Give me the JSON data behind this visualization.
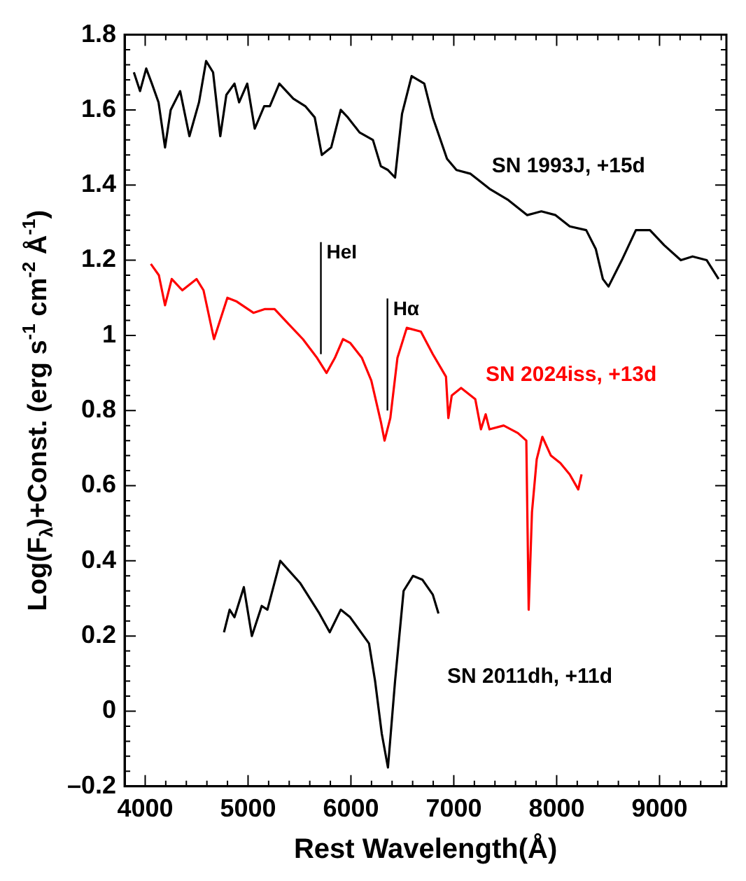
{
  "chart_data": {
    "type": "line",
    "xlabel": "Rest Wavelength(Å)",
    "ylabel": "Log(F$_{λ}$)+Const. (erg s$^{-1}$ cm$^{-2}$ Å$^{-1}$)",
    "xlim": [
      3800,
      9650
    ],
    "ylim": [
      -0.2,
      1.8
    ],
    "xticks": [
      {
        "value": 3800,
        "label": null
      },
      4000,
      {
        "value": 4200,
        "label": null
      },
      {
        "value": 4400,
        "label": null
      },
      {
        "value": 4600,
        "label": null
      },
      {
        "value": 4800,
        "label": null
      },
      5000,
      {
        "value": 5200,
        "label": null
      },
      {
        "value": 5400,
        "label": null
      },
      {
        "value": 5600,
        "label": null
      },
      {
        "value": 5800,
        "label": null
      },
      6000,
      {
        "value": 6200,
        "label": null
      },
      {
        "value": 6400,
        "label": null
      },
      {
        "value": 6600,
        "label": null
      },
      {
        "value": 6800,
        "label": null
      },
      7000,
      {
        "value": 7200,
        "label": null
      },
      {
        "value": 7400,
        "label": null
      },
      {
        "value": 7600,
        "label": null
      },
      {
        "value": 7800,
        "label": null
      },
      8000,
      {
        "value": 8200,
        "label": null
      },
      {
        "value": 8400,
        "label": null
      },
      {
        "value": 8600,
        "label": null
      },
      {
        "value": 8800,
        "label": null
      },
      9000,
      {
        "value": 9200,
        "label": null
      },
      {
        "value": 9400,
        "label": null
      },
      {
        "value": 9600,
        "label": null
      }
    ],
    "yticks": [
      {
        "value": -0.2,
        "label": "–0.2"
      },
      {
        "value": -0.16,
        "label": null
      },
      {
        "value": -0.12,
        "label": null
      },
      {
        "value": -0.08,
        "label": null
      },
      {
        "value": -0.04,
        "label": null
      },
      0,
      {
        "value": 0.04,
        "label": null
      },
      {
        "value": 0.08,
        "label": null
      },
      {
        "value": 0.12,
        "label": null
      },
      {
        "value": 0.16,
        "label": null
      },
      0.2,
      {
        "value": 0.24,
        "label": null
      },
      {
        "value": 0.28,
        "label": null
      },
      {
        "value": 0.32,
        "label": null
      },
      {
        "value": 0.36,
        "label": null
      },
      0.4,
      {
        "value": 0.44,
        "label": null
      },
      {
        "value": 0.48,
        "label": null
      },
      {
        "value": 0.52,
        "label": null
      },
      {
        "value": 0.56,
        "label": null
      },
      0.6,
      {
        "value": 0.64,
        "label": null
      },
      {
        "value": 0.68,
        "label": null
      },
      {
        "value": 0.72,
        "label": null
      },
      {
        "value": 0.76,
        "label": null
      },
      0.8,
      {
        "value": 0.84,
        "label": null
      },
      {
        "value": 0.88,
        "label": null
      },
      {
        "value": 0.92,
        "label": null
      },
      {
        "value": 0.96,
        "label": null
      },
      1,
      {
        "value": 1.04,
        "label": null
      },
      {
        "value": 1.08,
        "label": null
      },
      {
        "value": 1.12,
        "label": null
      },
      {
        "value": 1.16,
        "label": null
      },
      1.2,
      {
        "value": 1.24,
        "label": null
      },
      {
        "value": 1.28,
        "label": null
      },
      {
        "value": 1.32,
        "label": null
      },
      {
        "value": 1.36,
        "label": null
      },
      1.4,
      {
        "value": 1.44,
        "label": null
      },
      {
        "value": 1.48,
        "label": null
      },
      {
        "value": 1.52,
        "label": null
      },
      {
        "value": 1.56,
        "label": null
      },
      1.6,
      {
        "value": 1.64,
        "label": null
      },
      {
        "value": 1.68,
        "label": null
      },
      {
        "value": 1.72,
        "label": null
      },
      {
        "value": 1.76,
        "label": null
      },
      1.8
    ],
    "grid": false,
    "legend": false,
    "marker": "none",
    "line_style": "solid",
    "series": [
      {
        "name": "SN 1993J, +15d",
        "color": "#000000",
        "x": [
          3890,
          3950,
          4010,
          4065,
          4130,
          4193,
          4248,
          4340,
          4430,
          4523,
          4592,
          4660,
          4730,
          4789,
          4868,
          4913,
          4992,
          5065,
          5157,
          5212,
          5304,
          5440,
          5556,
          5648,
          5717,
          5808,
          5901,
          5970,
          6084,
          6214,
          6291,
          6360,
          6429,
          6497,
          6590,
          6713,
          6796,
          6934,
          7026,
          7163,
          7347,
          7530,
          7714,
          7851,
          7989,
          8127,
          8287,
          8380,
          8449,
          8504,
          8633,
          8770,
          8907,
          9045,
          9207,
          9321,
          9459,
          9574
        ],
        "values": [
          1.7,
          1.65,
          1.71,
          1.67,
          1.62,
          1.5,
          1.6,
          1.65,
          1.53,
          1.62,
          1.73,
          1.7,
          1.53,
          1.64,
          1.67,
          1.62,
          1.67,
          1.55,
          1.61,
          1.61,
          1.67,
          1.63,
          1.61,
          1.58,
          1.48,
          1.5,
          1.6,
          1.58,
          1.54,
          1.52,
          1.45,
          1.44,
          1.42,
          1.59,
          1.69,
          1.67,
          1.58,
          1.47,
          1.44,
          1.43,
          1.39,
          1.36,
          1.32,
          1.33,
          1.32,
          1.29,
          1.28,
          1.23,
          1.15,
          1.13,
          1.2,
          1.28,
          1.28,
          1.24,
          1.2,
          1.21,
          1.2,
          1.15
        ]
      },
      {
        "name": "SN 2024iss, +13d",
        "color": "#ff0000",
        "x": [
          4055,
          4133,
          4193,
          4258,
          4361,
          4499,
          4567,
          4669,
          4799,
          4890,
          5052,
          5165,
          5258,
          5395,
          5533,
          5671,
          5763,
          5844,
          5923,
          5992,
          6107,
          6198,
          6291,
          6327,
          6383,
          6452,
          6543,
          6680,
          6796,
          6924,
          6947,
          6980,
          7071,
          7209,
          7264,
          7310,
          7347,
          7485,
          7623,
          7705,
          7728,
          7760,
          7806,
          7861,
          7944,
          8036,
          8127,
          8210,
          8242
        ],
        "values": [
          1.19,
          1.16,
          1.08,
          1.15,
          1.12,
          1.15,
          1.12,
          0.99,
          1.1,
          1.09,
          1.06,
          1.07,
          1.07,
          1.03,
          0.99,
          0.94,
          0.9,
          0.94,
          0.99,
          0.98,
          0.94,
          0.88,
          0.77,
          0.72,
          0.78,
          0.94,
          1.02,
          1.01,
          0.95,
          0.89,
          0.78,
          0.84,
          0.86,
          0.83,
          0.75,
          0.79,
          0.75,
          0.76,
          0.74,
          0.72,
          0.27,
          0.53,
          0.67,
          0.73,
          0.68,
          0.66,
          0.63,
          0.59,
          0.63
        ]
      },
      {
        "name": "SN 2011dh, +11d",
        "color": "#000000",
        "x": [
          4766,
          4821,
          4868,
          4959,
          5037,
          5133,
          5188,
          5313,
          5509,
          5693,
          5794,
          5901,
          5992,
          6176,
          6235,
          6300,
          6360,
          6429,
          6512,
          6603,
          6694,
          6796,
          6851
        ],
        "values": [
          0.21,
          0.27,
          0.25,
          0.33,
          0.2,
          0.28,
          0.27,
          0.4,
          0.34,
          0.26,
          0.21,
          0.27,
          0.25,
          0.18,
          0.08,
          -0.06,
          -0.15,
          0.08,
          0.32,
          0.36,
          0.35,
          0.31,
          0.26
        ]
      }
    ],
    "annotations": [
      {
        "text": "HeI",
        "x": 5708,
        "y": 0.95
      },
      {
        "text": "Hα",
        "x": 6355,
        "y": 0.8
      }
    ]
  }
}
